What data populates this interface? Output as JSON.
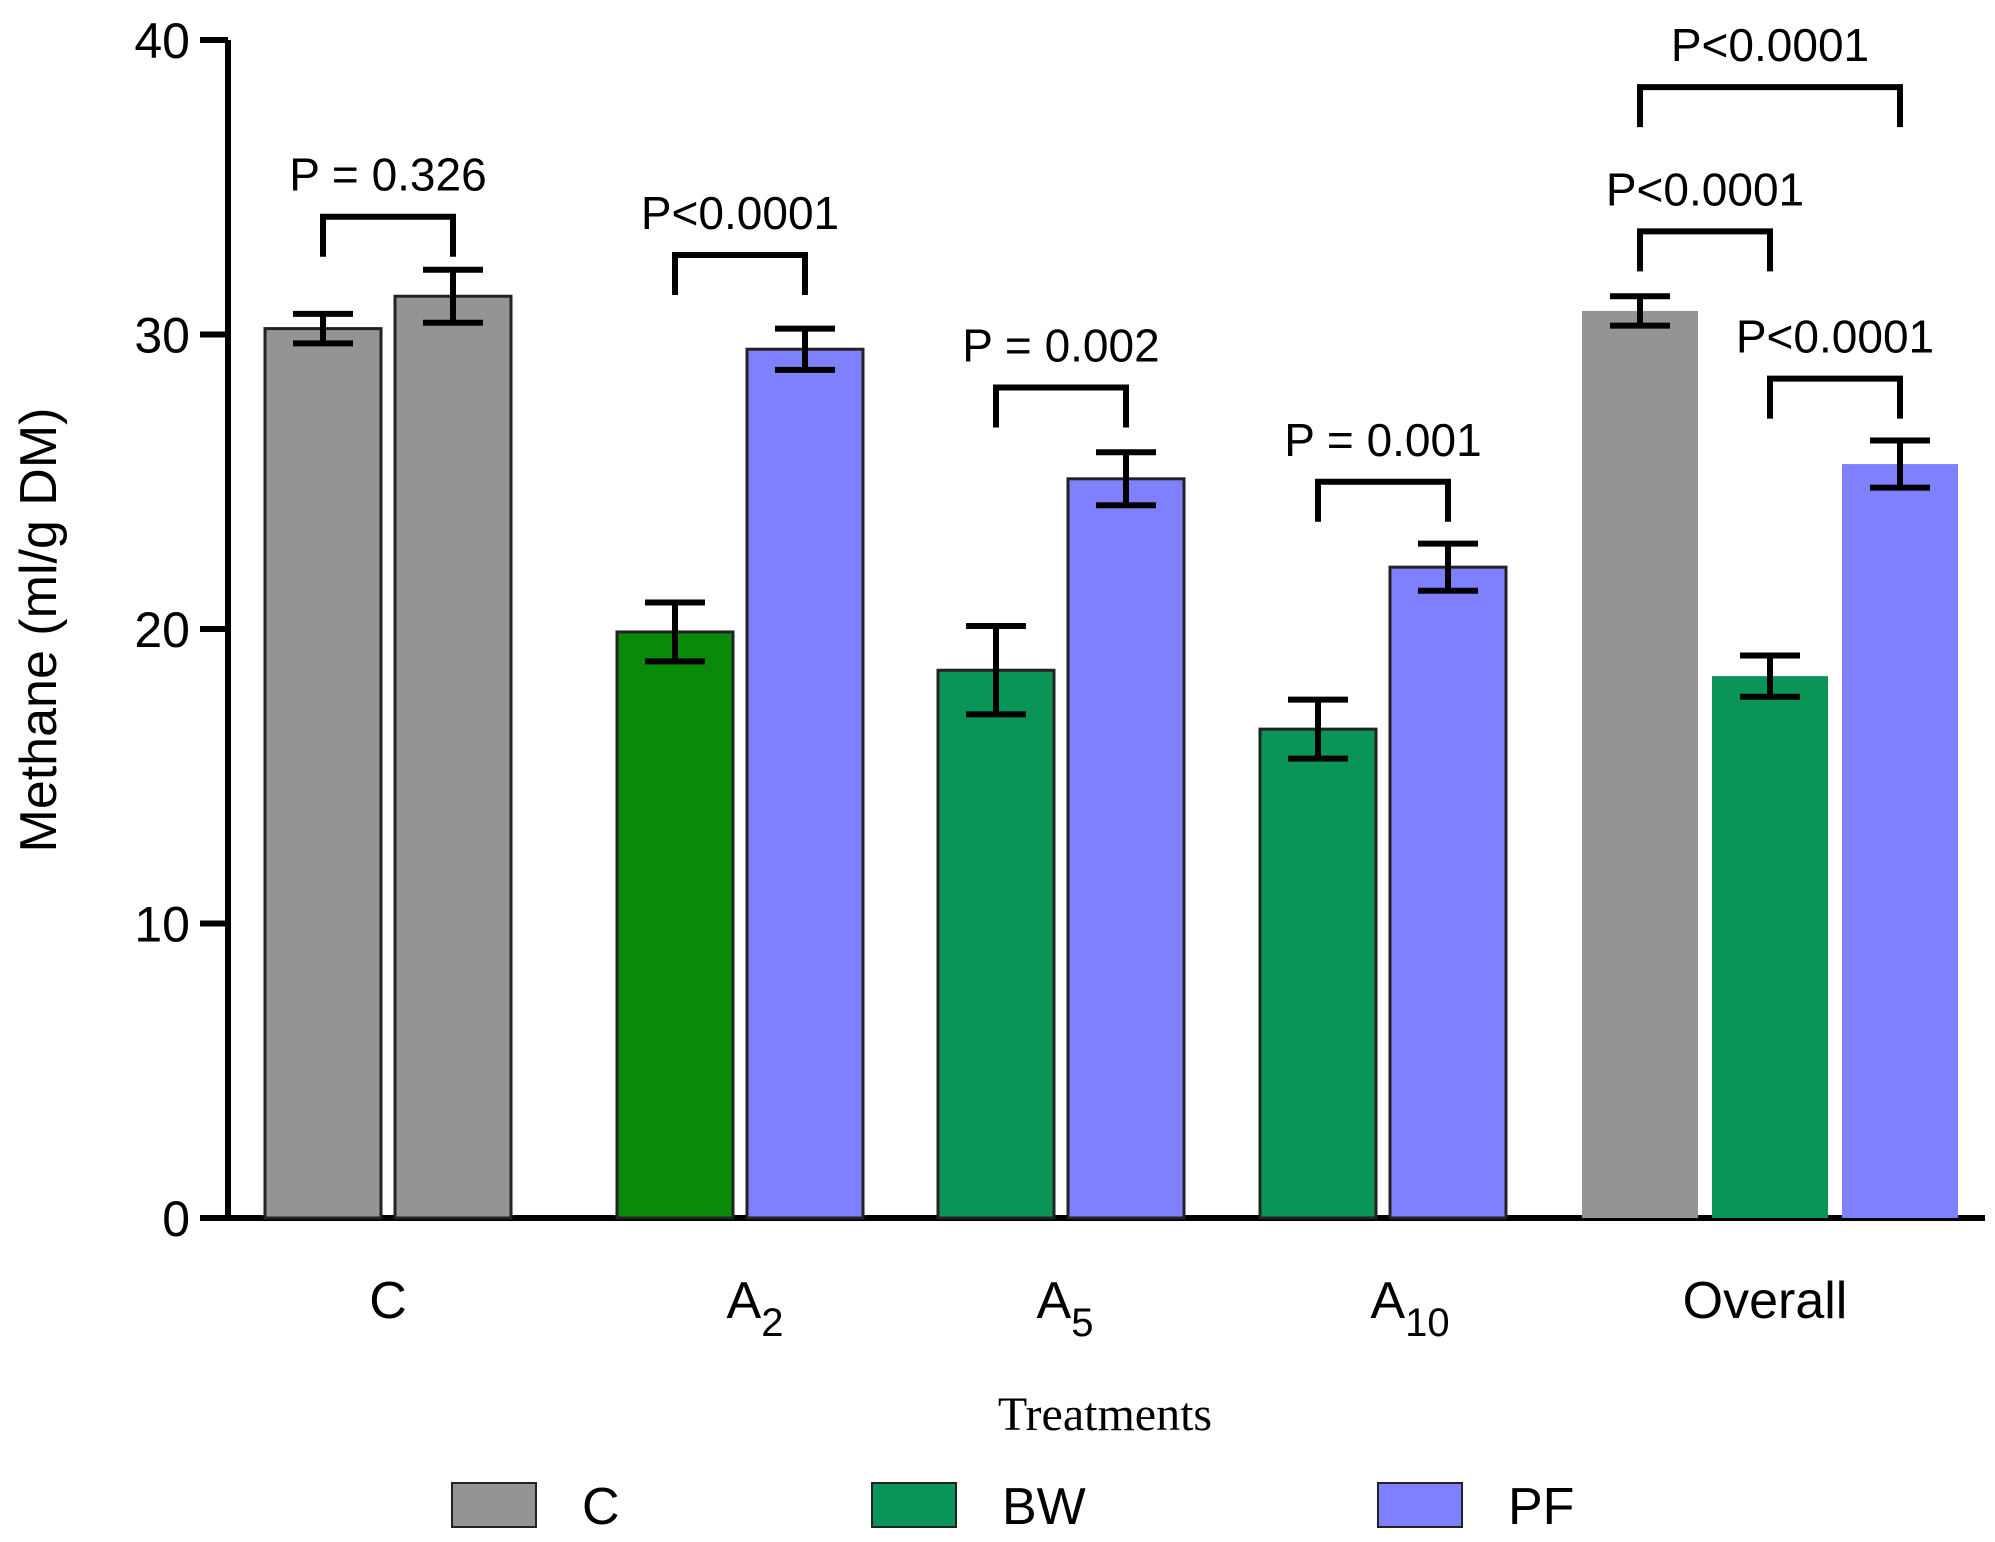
{
  "chart_data": {
    "type": "bar",
    "title": "",
    "xlabel": "Treatments",
    "ylabel": "Methane (ml/g DM)",
    "ylim": [
      0,
      40
    ],
    "yticks": [
      "0",
      "10",
      "20",
      "30",
      "40"
    ],
    "grid": false,
    "legend_position": "bottom",
    "colors": {
      "C": "#949494",
      "BW_A2": "#0a8a0a",
      "BW": "#0a9457",
      "PF": "#7f80fd",
      "axis": "#000000"
    },
    "legend": [
      {
        "name": "C",
        "color": "#949494"
      },
      {
        "name": "BW",
        "color": "#0a9457"
      },
      {
        "name": "PF",
        "color": "#7f80fd"
      }
    ],
    "groups": [
      {
        "label": "C",
        "sub": "",
        "bars": [
          {
            "series": "C",
            "value": 30.2,
            "error": 0.5,
            "color": "#949494"
          },
          {
            "series": "C",
            "value": 31.3,
            "error": 0.9,
            "color": "#949494"
          }
        ]
      },
      {
        "label": "A",
        "sub": "2",
        "bars": [
          {
            "series": "BW",
            "value": 19.9,
            "error": 1.0,
            "color": "#0a8a0a"
          },
          {
            "series": "PF",
            "value": 29.5,
            "error": 0.7,
            "color": "#7f80fd"
          }
        ]
      },
      {
        "label": "A",
        "sub": "5",
        "bars": [
          {
            "series": "BW",
            "value": 18.6,
            "error": 1.5,
            "color": "#0a9457"
          },
          {
            "series": "PF",
            "value": 25.1,
            "error": 0.9,
            "color": "#7f80fd"
          }
        ]
      },
      {
        "label": "A",
        "sub": "10",
        "bars": [
          {
            "series": "BW",
            "value": 16.6,
            "error": 1.0,
            "color": "#0a9457"
          },
          {
            "series": "PF",
            "value": 22.1,
            "error": 0.8,
            "color": "#7f80fd"
          }
        ]
      },
      {
        "label": "Overall",
        "sub": "",
        "bars": [
          {
            "series": "C",
            "value": 30.8,
            "error": 0.5,
            "color": "#949494"
          },
          {
            "series": "BW",
            "value": 18.4,
            "error": 0.7,
            "color": "#0a9457"
          },
          {
            "series": "PF",
            "value": 25.6,
            "error": 0.8,
            "color": "#7f80fd"
          }
        ]
      }
    ],
    "significance": [
      {
        "group": 0,
        "from": 0,
        "to": 1,
        "text": "P = 0.326",
        "level": 34.0
      },
      {
        "group": 1,
        "from": 0,
        "to": 1,
        "text": "P<0.0001",
        "level": 32.7
      },
      {
        "group": 2,
        "from": 0,
        "to": 1,
        "text": "P = 0.002",
        "level": 28.2
      },
      {
        "group": 3,
        "from": 0,
        "to": 1,
        "text": "P = 0.001",
        "level": 25.0
      },
      {
        "group": 4,
        "from": 0,
        "to": 1,
        "text": "P<0.0001",
        "level": 33.5
      },
      {
        "group": 4,
        "from": 1,
        "to": 2,
        "text": "P<0.0001",
        "level": 28.5
      },
      {
        "group": 4,
        "from": 0,
        "to": 2,
        "text": "P<0.0001",
        "level": 38.4
      }
    ]
  }
}
